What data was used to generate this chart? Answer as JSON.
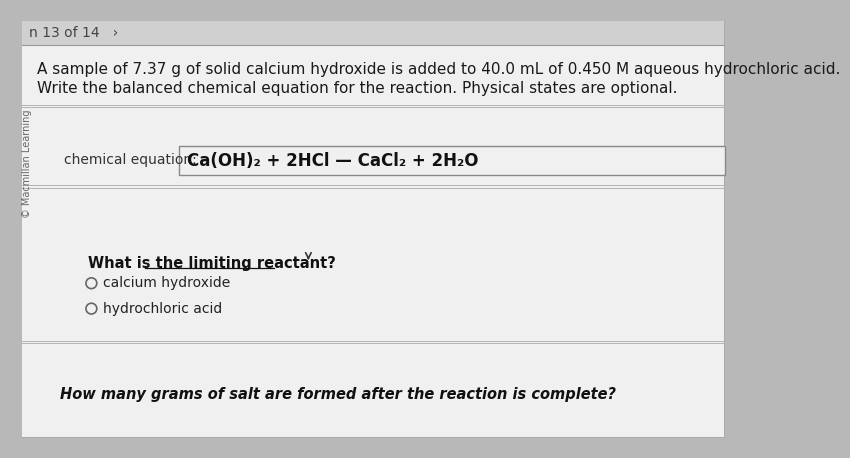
{
  "outer_bg": "#b8b8b8",
  "inner_bg": "#dcdcdc",
  "content_bg": "#e8e8e8",
  "nav_text": "n 13 of 14   ›",
  "nav_fontsize": 10,
  "nav_color": "#444444",
  "nav_bg": "#d0d0d0",
  "watermark_text": "© Macmillan Learning",
  "watermark_fontsize": 7,
  "watermark_color": "#666666",
  "main_text_line1": "A sample of 7.37 g of solid calcium hydroxide is added to 40.0 mL of 0.450 M aqueous hydrochloric acid.",
  "main_text_line2": "Write the balanced chemical equation for the reaction. Physical states are optional.",
  "main_fontsize": 11,
  "main_color": "#1a1a1a",
  "label_text": "chemical equation:",
  "label_fontsize": 10,
  "label_color": "#333333",
  "equation_text": "Ca(OH)₂ + 2HCl — CaCl₂ + 2H₂O",
  "equation_fontsize": 12,
  "equation_color": "#111111",
  "box_edge_color": "#888888",
  "white_panel_bg": "#f0f0f0",
  "question2_bold_text": "What is the limiting reactant?",
  "question2_fontsize": 10.5,
  "question2_color": "#111111",
  "option1_text": "calcium hydroxide",
  "option2_text": "hydrochloric acid",
  "option_fontsize": 10,
  "option_color": "#222222",
  "circle_color": "#666666",
  "question3_text": "How many grams of salt are formed after the reaction is complete?",
  "question3_fontsize": 10.5,
  "question3_color": "#111111",
  "sep_line_color": "#aaaaaa",
  "top_line_color": "#999999"
}
